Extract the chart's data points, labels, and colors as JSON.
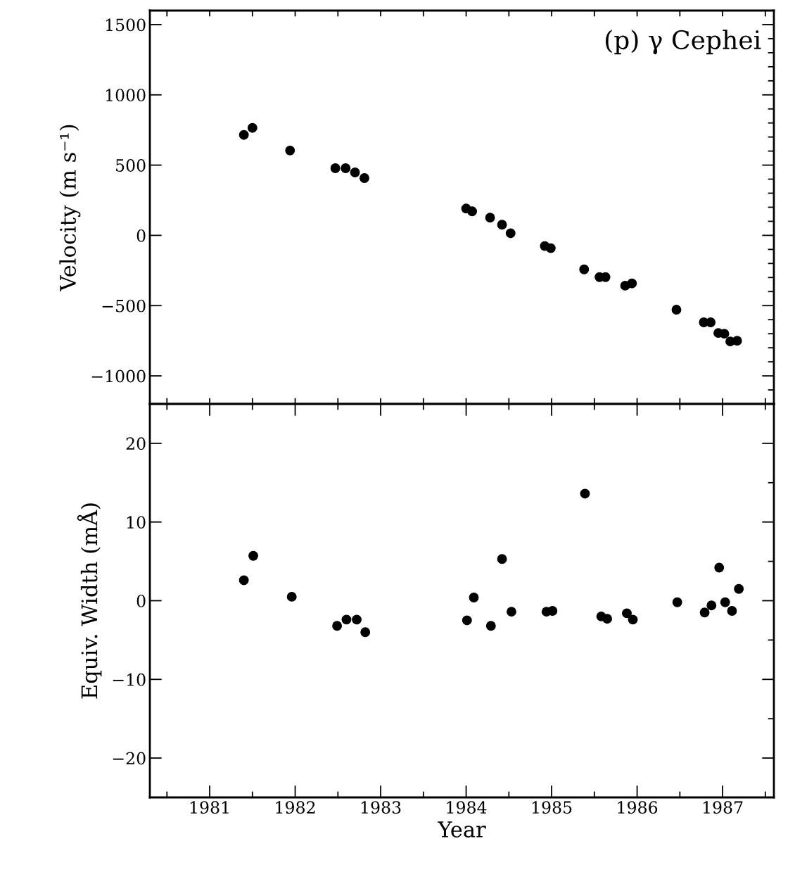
{
  "chart_data": [
    {
      "type": "scatter",
      "ylabel": "Velocity (m s⁻¹)",
      "annotations": [
        "(p) γ Cephei"
      ],
      "marker": "circle",
      "tick_labels": "y",
      "xlim": [
        1980.3,
        1987.6
      ],
      "xticks": [
        {
          "value": 1980.5,
          "label": null
        },
        {
          "value": 1981,
          "label": null
        },
        {
          "value": 1981.5,
          "label": null
        },
        {
          "value": 1982,
          "label": null
        },
        {
          "value": 1982.5,
          "label": null
        },
        {
          "value": 1983,
          "label": null
        },
        {
          "value": 1983.5,
          "label": null
        },
        {
          "value": 1984,
          "label": null
        },
        {
          "value": 1984.5,
          "label": null
        },
        {
          "value": 1985,
          "label": null
        },
        {
          "value": 1985.5,
          "label": null
        },
        {
          "value": 1986,
          "label": null
        },
        {
          "value": 1986.5,
          "label": null
        },
        {
          "value": 1987,
          "label": null
        },
        {
          "value": 1987.5,
          "label": null
        }
      ],
      "ylim": [
        -1200,
        1600
      ],
      "yticks": [
        {
          "value": -1200,
          "label": null
        },
        {
          "value": -1100,
          "label": null
        },
        -1000,
        {
          "value": -900,
          "label": null
        },
        {
          "value": -800,
          "label": null
        },
        {
          "value": -700,
          "label": null
        },
        {
          "value": -600,
          "label": null
        },
        -500,
        {
          "value": -400,
          "label": null
        },
        {
          "value": -300,
          "label": null
        },
        {
          "value": -200,
          "label": null
        },
        {
          "value": -100,
          "label": null
        },
        0,
        {
          "value": 100,
          "label": null
        },
        {
          "value": 200,
          "label": null
        },
        {
          "value": 300,
          "label": null
        },
        {
          "value": 400,
          "label": null
        },
        500,
        {
          "value": 600,
          "label": null
        },
        {
          "value": 700,
          "label": null
        },
        {
          "value": 800,
          "label": null
        },
        {
          "value": 900,
          "label": null
        },
        1000,
        {
          "value": 1100,
          "label": null
        },
        {
          "value": 1200,
          "label": null
        },
        {
          "value": 1300,
          "label": null
        },
        {
          "value": 1400,
          "label": null
        },
        1500,
        {
          "value": 1600,
          "label": null
        }
      ],
      "series": [
        {
          "color": "#000000",
          "x": [
            1981.4,
            1981.5,
            1981.94,
            1982.47,
            1982.59,
            1982.7,
            1982.81,
            1984.0,
            1984.07,
            1984.28,
            1984.42,
            1984.52,
            1984.92,
            1984.99,
            1985.38,
            1985.56,
            1985.63,
            1985.86,
            1985.94,
            1986.46,
            1986.78,
            1986.86,
            1986.95,
            1987.02,
            1987.09,
            1987.17
          ],
          "values": [
            715,
            765,
            604,
            478,
            478,
            448,
            408,
            191,
            171,
            126,
            76,
            15,
            -76,
            -91,
            -242,
            -297,
            -297,
            -358,
            -342,
            -529,
            -619,
            -619,
            -695,
            -700,
            -755,
            -750
          ]
        }
      ]
    },
    {
      "type": "scatter",
      "xlabel": "Year",
      "ylabel": "Equiv. Width (mÅ)",
      "marker": "circle",
      "xlim": [
        1980.3,
        1987.6
      ],
      "xticks": [
        {
          "value": 1980.5,
          "label": null
        },
        1981,
        {
          "value": 1981.5,
          "label": null
        },
        1982,
        {
          "value": 1982.5,
          "label": null
        },
        1983,
        {
          "value": 1983.5,
          "label": null
        },
        1984,
        {
          "value": 1984.5,
          "label": null
        },
        1985,
        {
          "value": 1985.5,
          "label": null
        },
        1986,
        {
          "value": 1986.5,
          "label": null
        },
        1987,
        {
          "value": 1987.5,
          "label": null
        }
      ],
      "ylim": [
        -25,
        25
      ],
      "yticks": [
        {
          "value": -25,
          "label": null
        },
        -20,
        {
          "value": -15,
          "label": null
        },
        -10,
        {
          "value": -5,
          "label": null
        },
        0,
        {
          "value": 5,
          "label": null
        },
        10,
        {
          "value": 15,
          "label": null
        },
        20,
        {
          "value": 25,
          "label": null
        }
      ],
      "series": [
        {
          "color": "#000000",
          "x": [
            1981.4,
            1981.51,
            1981.96,
            1982.49,
            1982.6,
            1982.72,
            1982.82,
            1984.01,
            1984.09,
            1984.29,
            1984.42,
            1984.53,
            1984.94,
            1985.01,
            1985.39,
            1985.58,
            1985.65,
            1985.88,
            1985.95,
            1986.47,
            1986.79,
            1986.87,
            1986.96,
            1987.03,
            1987.11,
            1987.19
          ],
          "values": [
            2.6,
            5.7,
            0.5,
            -3.2,
            -2.4,
            -2.4,
            -4.0,
            -2.5,
            0.4,
            -3.2,
            5.3,
            -1.4,
            -1.4,
            -1.3,
            13.6,
            -2.0,
            -2.3,
            -1.6,
            -2.4,
            -0.2,
            -1.5,
            -0.6,
            4.2,
            -0.2,
            -1.3,
            1.5
          ]
        }
      ]
    }
  ]
}
